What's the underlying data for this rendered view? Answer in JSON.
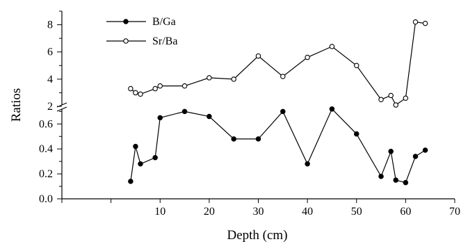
{
  "chart_data": {
    "type": "line",
    "xlabel": "Depth (cm)",
    "ylabel": "Ratios",
    "xlim": [
      -10,
      70
    ],
    "xticks": [
      10,
      20,
      30,
      40,
      50,
      60,
      70
    ],
    "y_axis_break": true,
    "upper_panel": {
      "ylim": [
        2,
        9
      ],
      "yticks": [
        2,
        4,
        6,
        8
      ]
    },
    "lower_panel": {
      "ylim": [
        0,
        0.73
      ],
      "yticks": [
        0.0,
        0.2,
        0.4,
        0.6
      ]
    },
    "legend_position": "top-left",
    "series": [
      {
        "name": "B/Ga",
        "panel": "lower",
        "marker": "filled-circle",
        "x": [
          4,
          5,
          6,
          9,
          10,
          15,
          20,
          25,
          30,
          35,
          40,
          45,
          50,
          55,
          57,
          58,
          60,
          62,
          64
        ],
        "y": [
          0.14,
          0.42,
          0.28,
          0.33,
          0.65,
          0.7,
          0.66,
          0.48,
          0.48,
          0.7,
          0.28,
          0.72,
          0.52,
          0.18,
          0.38,
          0.15,
          0.13,
          0.34,
          0.39
        ]
      },
      {
        "name": "Sr/Ba",
        "panel": "upper",
        "marker": "open-circle",
        "x": [
          4,
          5,
          6,
          9,
          10,
          15,
          20,
          25,
          30,
          35,
          40,
          45,
          50,
          55,
          57,
          58,
          60,
          62,
          64
        ],
        "y": [
          3.3,
          3.0,
          2.9,
          3.3,
          3.5,
          3.5,
          4.1,
          4.0,
          5.7,
          4.2,
          5.6,
          6.4,
          5.0,
          2.5,
          2.8,
          2.1,
          2.6,
          8.2,
          8.1
        ]
      }
    ]
  }
}
